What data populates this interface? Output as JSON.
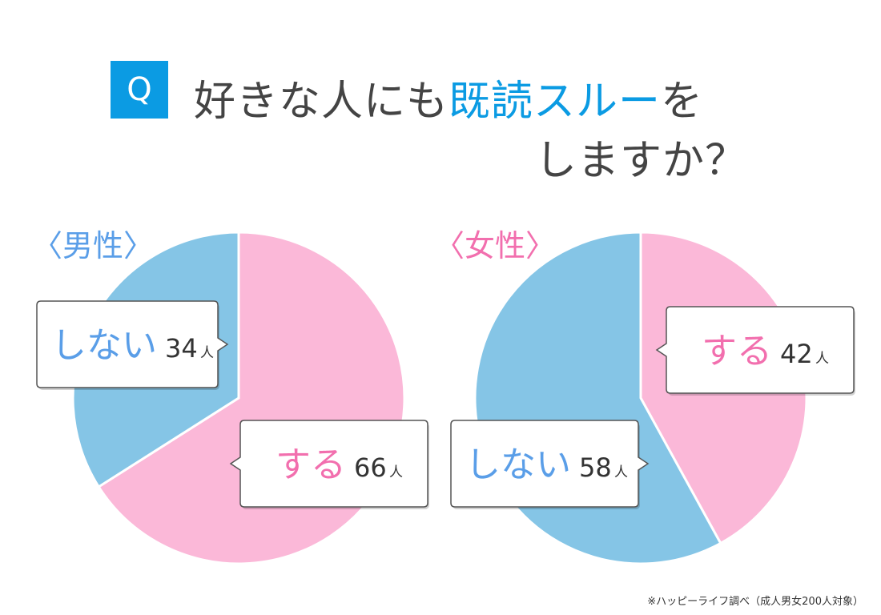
{
  "question": {
    "badge": "Q",
    "line1_pre": "好きな人にも",
    "line1_highlight": "既読スルー",
    "line1_post": "を",
    "line2": "しますか？"
  },
  "colors": {
    "accent": "#0b9be3",
    "blue_slice": "#85c5e6",
    "pink_slice": "#fbb8d8",
    "male_label": "#5a9ee8",
    "female_label": "#f26fae",
    "shinai_text": "#5a9ee8",
    "suru_text": "#f26fae",
    "box_border": "#555555"
  },
  "chart_data": [
    {
      "type": "pie",
      "title": "〈男性〉",
      "unit": "人",
      "slices": [
        {
          "label": "する",
          "value": 66
        },
        {
          "label": "しない",
          "value": 34
        }
      ]
    },
    {
      "type": "pie",
      "title": "〈女性〉",
      "unit": "人",
      "slices": [
        {
          "label": "する",
          "value": 42
        },
        {
          "label": "しない",
          "value": 58
        }
      ]
    }
  ],
  "source": "※ハッピーライフ調べ（成人男女200人対象）"
}
